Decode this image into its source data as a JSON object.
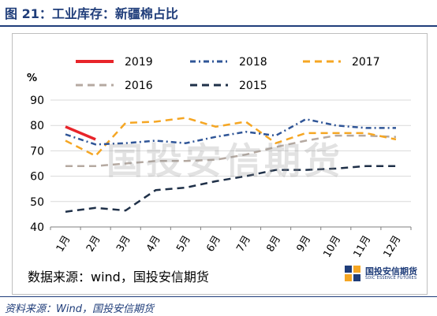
{
  "figure_title": "图 21：工业库存：新疆棉占比",
  "inner_source": "数据来源：wind，国投安信期货",
  "bottom_source": "资料来源：Wind，国投安信期货",
  "watermark": "国投安信期货",
  "logo": {
    "name": "国投安信期货",
    "english": "SDIC ESSENCE FUTURES"
  },
  "chart_data": {
    "type": "line",
    "ylabel": "%",
    "ylim": [
      40,
      90
    ],
    "yticks": [
      40,
      50,
      60,
      70,
      80,
      90
    ],
    "grid": true,
    "legend_position": "top",
    "categories": [
      "1月",
      "2月",
      "3月",
      "4月",
      "5月",
      "6月",
      "7月",
      "8月",
      "9月",
      "10月",
      "11月",
      "12月"
    ],
    "series": [
      {
        "name": "2019",
        "color": "#e8242a",
        "dash": "solid",
        "values": [
          79.5,
          74.5,
          null,
          null,
          null,
          null,
          null,
          null,
          null,
          null,
          null,
          null
        ]
      },
      {
        "name": "2018",
        "color": "#2f5597",
        "dash": "dashdot",
        "values": [
          76.5,
          72.5,
          73,
          74,
          73,
          75.5,
          77.5,
          76,
          82.5,
          80,
          79,
          79
        ]
      },
      {
        "name": "2017",
        "color": "#f5a623",
        "dash": "dash",
        "values": [
          74,
          68,
          81,
          81.5,
          83,
          79.5,
          81.5,
          73,
          77,
          77,
          77,
          74.5
        ]
      },
      {
        "name": "2016",
        "color": "#b5a9a1",
        "dash": "dash",
        "values": [
          64,
          64,
          65,
          66,
          66,
          66.5,
          68.5,
          71.5,
          74,
          76,
          76,
          75.5
        ]
      },
      {
        "name": "2015",
        "color": "#1f3048",
        "dash": "dash",
        "values": [
          46,
          47.5,
          46.5,
          54.5,
          55.5,
          58,
          60,
          62.5,
          62.5,
          63,
          64,
          64
        ]
      }
    ]
  }
}
